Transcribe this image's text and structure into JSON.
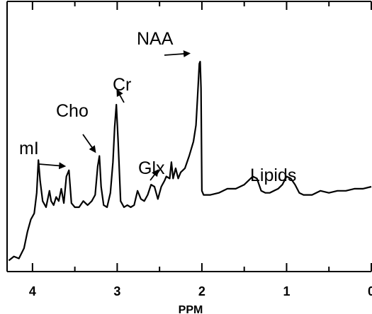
{
  "chart_data": {
    "type": "line",
    "title": "",
    "xlabel": "PPM",
    "ylabel": "",
    "xlim": [
      4.3,
      0
    ],
    "ylim": [
      0,
      1
    ],
    "x_reversed": true,
    "x_tick_labels": [
      "4",
      "3",
      "2",
      "1",
      "0"
    ],
    "x_tick_values": [
      4,
      3,
      2,
      1,
      0
    ],
    "grid": false,
    "legend": "none",
    "line_color": "#000000",
    "series": [
      {
        "name": "",
        "x": [
          4.28,
          4.22,
          4.16,
          4.1,
          4.06,
          4.02,
          3.98,
          3.95,
          3.93,
          3.91,
          3.88,
          3.84,
          3.8,
          3.78,
          3.75,
          3.72,
          3.69,
          3.66,
          3.63,
          3.6,
          3.57,
          3.54,
          3.5,
          3.45,
          3.4,
          3.35,
          3.3,
          3.26,
          3.23,
          3.21,
          3.19,
          3.16,
          3.12,
          3.08,
          3.05,
          3.03,
          3.01,
          2.99,
          2.96,
          2.92,
          2.88,
          2.84,
          2.8,
          2.76,
          2.72,
          2.68,
          2.64,
          2.6,
          2.56,
          2.52,
          2.48,
          2.44,
          2.42,
          2.38,
          2.36,
          2.34,
          2.31,
          2.28,
          2.25,
          2.2,
          2.15,
          2.1,
          2.07,
          2.05,
          2.03,
          2.02,
          2.01,
          2.0,
          1.98,
          1.95,
          1.9,
          1.8,
          1.7,
          1.6,
          1.5,
          1.45,
          1.4,
          1.35,
          1.3,
          1.25,
          1.2,
          1.1,
          1.05,
          1.0,
          0.95,
          0.9,
          0.85,
          0.8,
          0.7,
          0.6,
          0.5,
          0.4,
          0.3,
          0.2,
          0.1,
          0.0
        ],
        "y": [
          0.04,
          0.06,
          0.05,
          0.1,
          0.18,
          0.24,
          0.27,
          0.37,
          0.53,
          0.43,
          0.33,
          0.3,
          0.38,
          0.33,
          0.31,
          0.35,
          0.33,
          0.39,
          0.32,
          0.45,
          0.48,
          0.32,
          0.3,
          0.3,
          0.33,
          0.31,
          0.33,
          0.36,
          0.5,
          0.55,
          0.4,
          0.31,
          0.3,
          0.37,
          0.52,
          0.69,
          0.8,
          0.63,
          0.33,
          0.3,
          0.31,
          0.3,
          0.31,
          0.38,
          0.34,
          0.33,
          0.36,
          0.41,
          0.4,
          0.34,
          0.4,
          0.43,
          0.45,
          0.44,
          0.52,
          0.44,
          0.49,
          0.44,
          0.47,
          0.49,
          0.55,
          0.62,
          0.7,
          0.85,
          1.0,
          1.01,
          0.88,
          0.38,
          0.36,
          0.36,
          0.36,
          0.37,
          0.39,
          0.39,
          0.41,
          0.43,
          0.45,
          0.44,
          0.38,
          0.37,
          0.37,
          0.39,
          0.41,
          0.45,
          0.44,
          0.41,
          0.37,
          0.36,
          0.36,
          0.38,
          0.37,
          0.38,
          0.38,
          0.39,
          0.39,
          0.4
        ]
      }
    ],
    "annotations": [
      {
        "text": "mI",
        "arrow_to": [
          3.62,
          0.5
        ]
      },
      {
        "text": "Cho",
        "arrow_to": [
          3.26,
          0.57
        ]
      },
      {
        "text": "Cr",
        "arrow_to": [
          3.0,
          0.87
        ]
      },
      {
        "text": "Glx",
        "arrow_to": [
          2.52,
          0.48
        ]
      },
      {
        "text": "NAA",
        "arrow_to": [
          2.15,
          1.05
        ]
      },
      {
        "text": "Lipids",
        "arrow_to": null
      }
    ]
  }
}
